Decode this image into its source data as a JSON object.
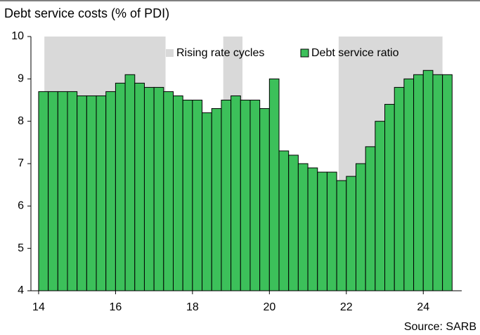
{
  "chart_data": {
    "type": "bar",
    "title": "Debt service costs (% of PDI)",
    "source": "Source: SARB",
    "x": [
      14,
      14.25,
      14.5,
      14.75,
      15,
      15.25,
      15.5,
      15.75,
      16,
      16.25,
      16.5,
      16.75,
      17,
      17.25,
      17.5,
      17.75,
      18,
      18.25,
      18.5,
      18.75,
      19,
      19.25,
      19.5,
      19.75,
      20,
      20.25,
      20.5,
      20.75,
      21,
      21.25,
      21.5,
      21.75,
      22,
      22.25,
      22.5,
      22.75,
      23,
      23.25,
      23.5,
      23.75,
      24,
      24.25,
      24.5
    ],
    "series": [
      {
        "name": "Debt service ratio",
        "color": "#3cc05a",
        "values": [
          8.7,
          8.7,
          8.7,
          8.7,
          8.6,
          8.6,
          8.6,
          8.7,
          8.9,
          9.1,
          8.9,
          8.8,
          8.8,
          8.7,
          8.6,
          8.5,
          8.5,
          8.2,
          8.3,
          8.5,
          8.6,
          8.5,
          8.5,
          8.3,
          9.0,
          7.3,
          7.2,
          7.0,
          6.9,
          6.8,
          6.8,
          6.6,
          6.7,
          7.0,
          7.4,
          8.0,
          8.4,
          8.8,
          9.0,
          9.1,
          9.2,
          9.1,
          9.1
        ]
      }
    ],
    "shaded": {
      "name": "Rising rate cycles",
      "color": "#d9d9d9",
      "spans": [
        [
          14.15,
          17.3
        ],
        [
          18.8,
          19.3
        ],
        [
          21.8,
          24.5
        ]
      ]
    },
    "xlim": [
      13.8,
      25
    ],
    "xticks": [
      14,
      16,
      18,
      20,
      22,
      24
    ],
    "xtick_labels": [
      "14",
      "16",
      "18",
      "20",
      "22",
      "24"
    ],
    "ylim": [
      4,
      10
    ],
    "yticks": [
      4,
      5,
      6,
      7,
      8,
      9,
      10
    ]
  }
}
